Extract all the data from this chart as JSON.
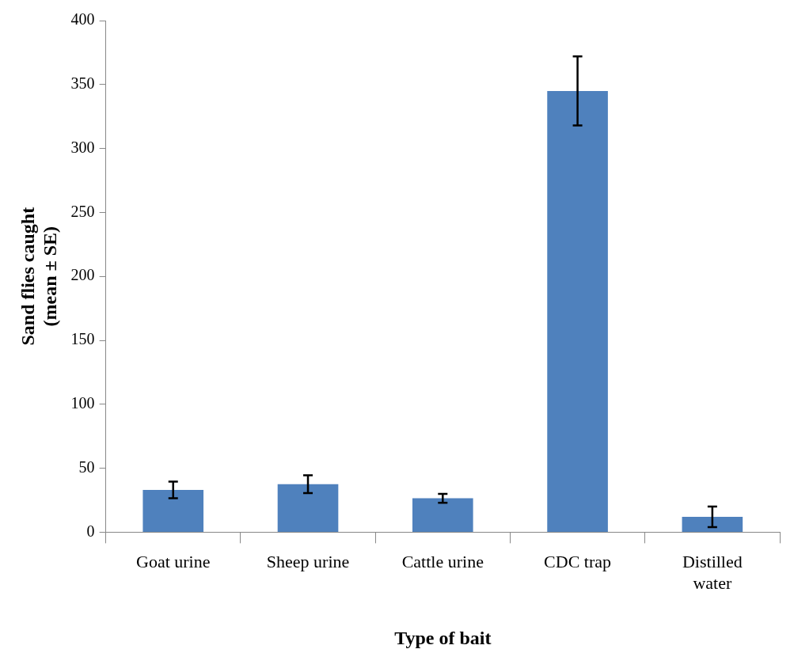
{
  "chart_data": {
    "type": "bar",
    "xlabel": "Type of bait",
    "ylabel": "Sand flies caught (mean ± SE)",
    "categories": [
      "Goat urine",
      "Sheep urine",
      "Cattle urine",
      "CDC trap",
      "Distilled water"
    ],
    "values": [
      33,
      37.5,
      26.5,
      345,
      12
    ],
    "errors": [
      6.5,
      7,
      3.5,
      27,
      8
    ],
    "color": "#4f81bd",
    "ylim": [
      0,
      400
    ],
    "yticks": [
      0,
      50,
      100,
      150,
      200,
      250,
      300,
      350,
      400
    ],
    "grid": false,
    "legend": false
  }
}
